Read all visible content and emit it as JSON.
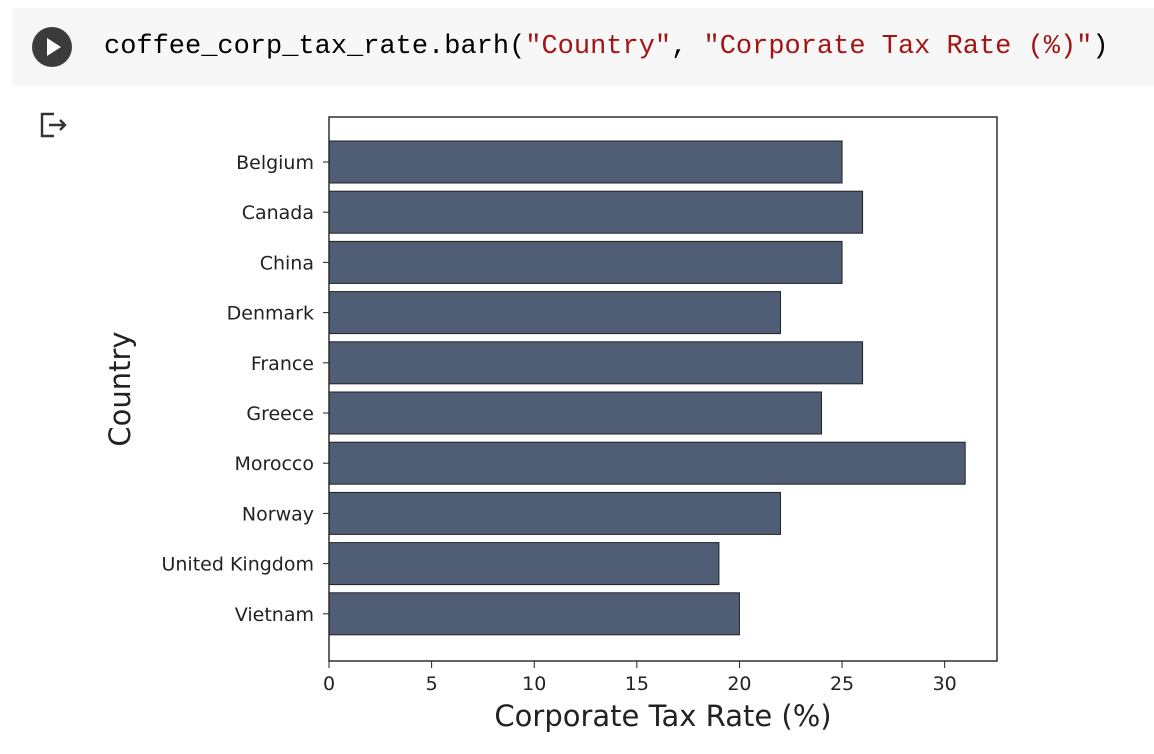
{
  "code_cell": {
    "run_button_icon": "play-icon",
    "code": {
      "prefix": "coffee_corp_tax_rate.barh(",
      "arg1": "\"Country\"",
      "sep": ", ",
      "arg2": "\"Corporate Tax Rate (%)\"",
      "suffix": ")"
    }
  },
  "output": {
    "icon": "output-redirect-icon"
  },
  "chart_data": {
    "type": "bar",
    "orientation": "horizontal",
    "categories": [
      "Belgium",
      "Canada",
      "China",
      "Denmark",
      "France",
      "Greece",
      "Morocco",
      "Norway",
      "United Kingdom",
      "Vietnam"
    ],
    "values": [
      25,
      26,
      25,
      22,
      26,
      24,
      31,
      22,
      19,
      20
    ],
    "xlabel": "Corporate Tax Rate (%)",
    "ylabel": "Country",
    "xlim": [
      0,
      32.55
    ],
    "xticks": [
      0,
      5,
      10,
      15,
      20,
      25,
      30
    ],
    "bar_color": "#4f5d75",
    "bar_edge_color": "#222222",
    "grid": false,
    "legend": "none"
  }
}
